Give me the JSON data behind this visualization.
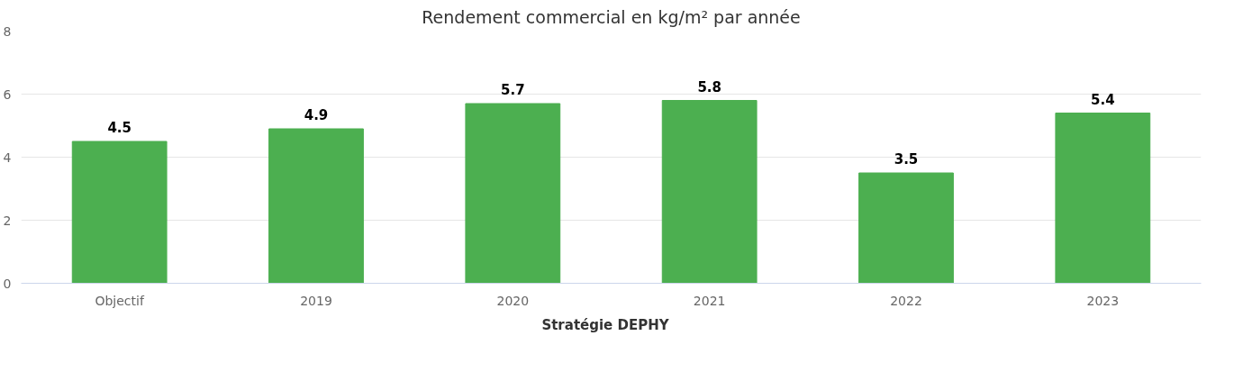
{
  "chart_data": {
    "type": "bar",
    "title": "Rendement commercial en kg/m² par année",
    "categories": [
      "Objectif",
      "2019",
      "2020",
      "2021",
      "2022",
      "2023"
    ],
    "series": [
      {
        "name": "Stratégie DEPHY",
        "color": "#4caf50",
        "values": [
          4.5,
          4.9,
          5.7,
          5.8,
          3.5,
          5.4
        ]
      }
    ],
    "ylim": [
      0,
      8
    ],
    "yticks": [
      0,
      2,
      4,
      6,
      8
    ],
    "grid": "y",
    "legend": "bottom",
    "data_labels": true
  }
}
